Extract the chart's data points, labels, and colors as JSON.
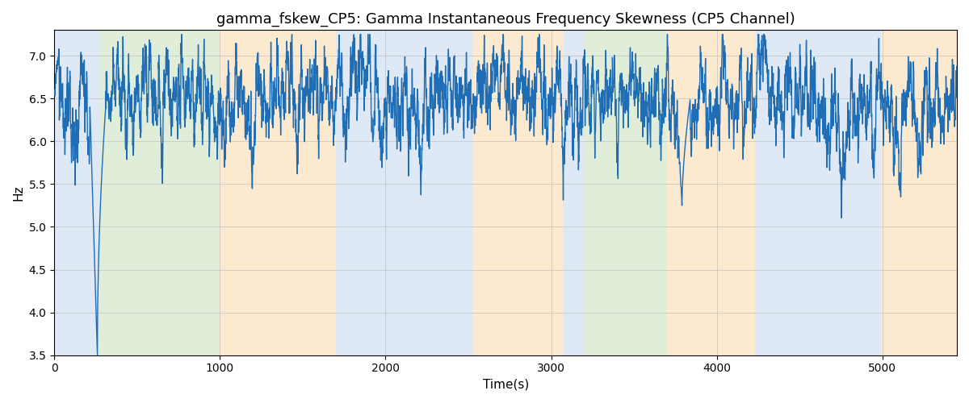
{
  "title": "gamma_fskew_CP5: Gamma Instantaneous Frequency Skewness (CP5 Channel)",
  "xlabel": "Time(s)",
  "ylabel": "Hz",
  "ylim": [
    3.5,
    7.3
  ],
  "xlim": [
    0,
    5450
  ],
  "bg_bands": [
    {
      "xmin": 0,
      "xmax": 270,
      "color": "#adc8e8"
    },
    {
      "xmin": 270,
      "xmax": 1000,
      "color": "#afd4a0"
    },
    {
      "xmin": 1000,
      "xmax": 1700,
      "color": "#f5c98a"
    },
    {
      "xmin": 1700,
      "xmax": 2530,
      "color": "#adc8e8"
    },
    {
      "xmin": 2530,
      "xmax": 3070,
      "color": "#f5c98a"
    },
    {
      "xmin": 3070,
      "xmax": 3200,
      "color": "#adc8e8"
    },
    {
      "xmin": 3200,
      "xmax": 3700,
      "color": "#afd4a0"
    },
    {
      "xmin": 3700,
      "xmax": 4230,
      "color": "#f5c98a"
    },
    {
      "xmin": 4230,
      "xmax": 4990,
      "color": "#adc8e8"
    },
    {
      "xmin": 4990,
      "xmax": 5450,
      "color": "#f5c98a"
    }
  ],
  "line_color": "#1f6eb5",
  "line_width": 1.0,
  "grid_color": "#b0b0b0",
  "grid_alpha": 0.5,
  "title_fontsize": 13,
  "axis_label_fontsize": 11,
  "tick_fontsize": 10,
  "bg_alpha": 0.4,
  "seed": 2023
}
